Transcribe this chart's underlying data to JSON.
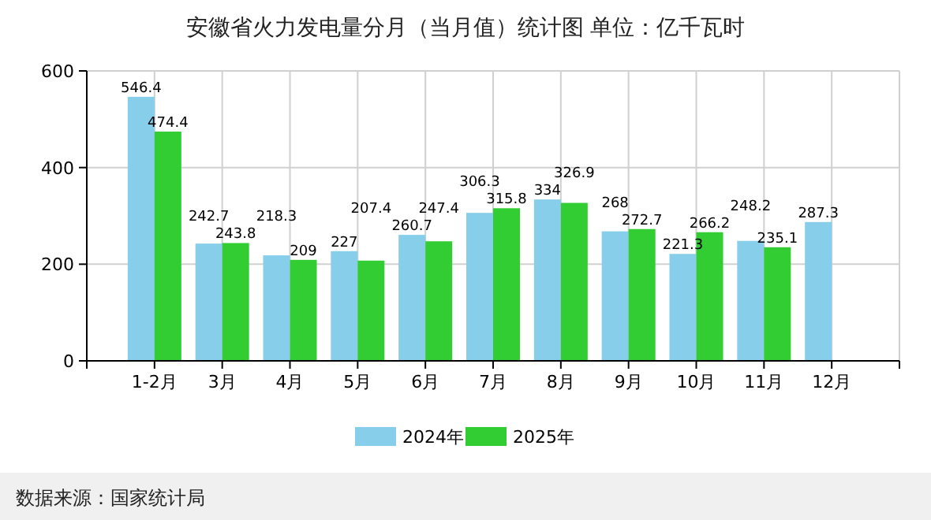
{
  "chart_data": {
    "type": "bar",
    "title": "安徽省火力发电量分月（当月值）统计图  单位：亿千瓦时",
    "categories": [
      "1-2月",
      "3月",
      "4月",
      "5月",
      "6月",
      "7月",
      "8月",
      "9月",
      "10月",
      "11月",
      "12月"
    ],
    "series": [
      {
        "name": "2024年",
        "color": "#87ceeb",
        "values": [
          546.4,
          242.7,
          218.3,
          227,
          260.7,
          306.3,
          334,
          268,
          221.3,
          248.2,
          287.3
        ]
      },
      {
        "name": "2025年",
        "color": "#32cd32",
        "values": [
          474.4,
          243.8,
          209,
          207.4,
          247.4,
          315.8,
          326.9,
          272.7,
          266.2,
          235.1,
          null
        ]
      }
    ],
    "ylim": [
      0,
      600
    ],
    "yticks": [
      0,
      200,
      400,
      600
    ],
    "grid": true,
    "legend": "bottom",
    "data_labels": true,
    "annotations": [
      "数据来源：国家统计局"
    ]
  }
}
